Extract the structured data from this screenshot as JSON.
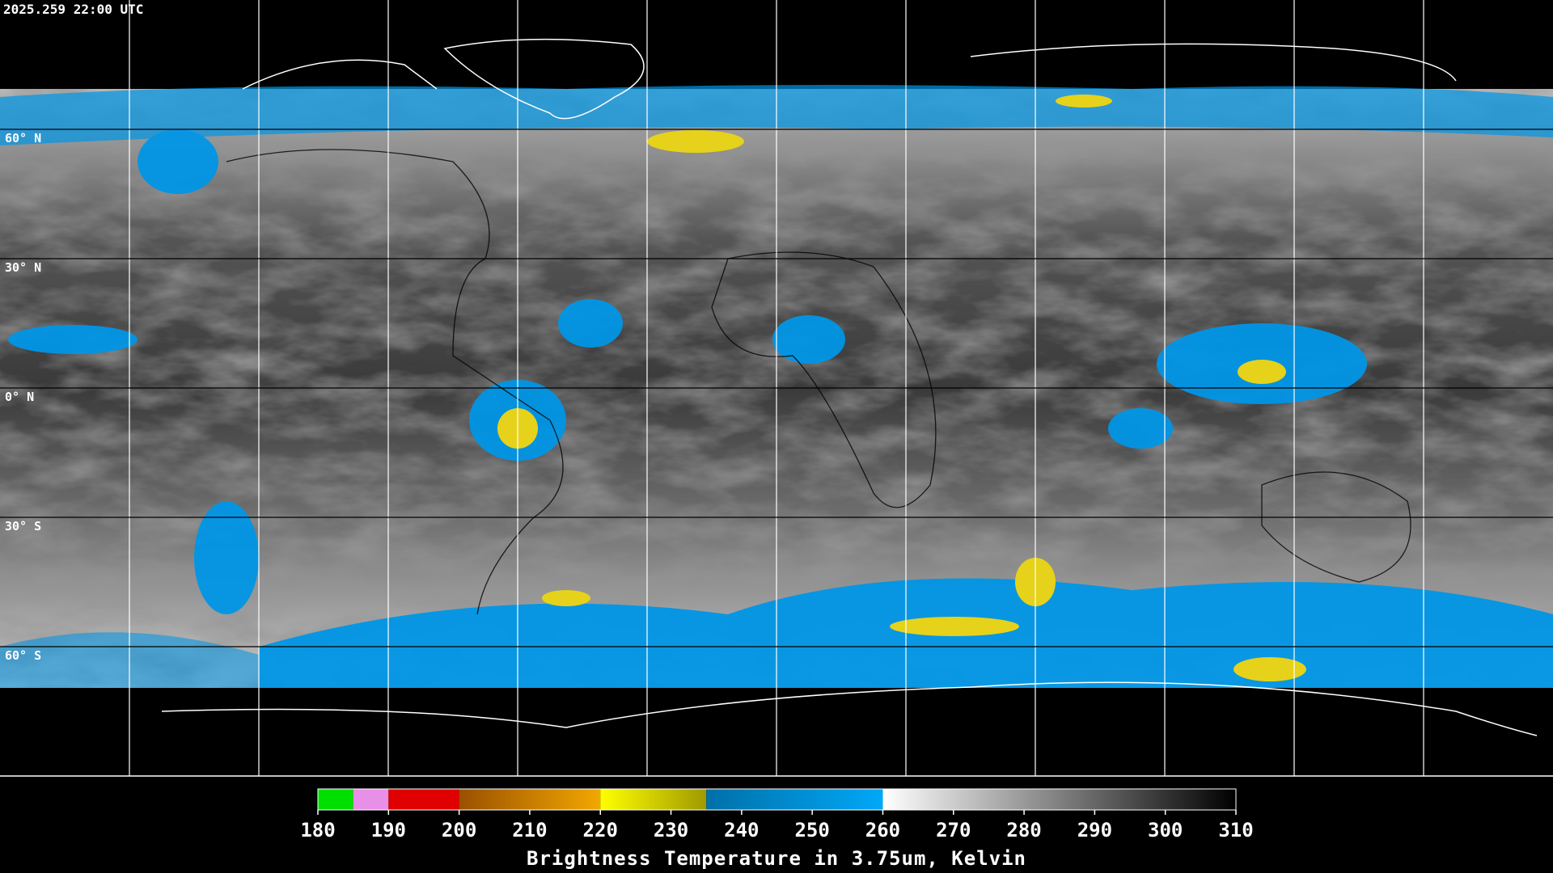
{
  "header": {
    "timestamp": "2025.259 22:00 UTC"
  },
  "map": {
    "latitudes": [
      {
        "value": 60,
        "label": "60° N"
      },
      {
        "value": 30,
        "label": "30° N"
      },
      {
        "value": 0,
        "label": "0° N"
      },
      {
        "value": -30,
        "label": "30° S"
      },
      {
        "value": -60,
        "label": "60° S"
      }
    ]
  },
  "colorbar": {
    "range": [
      180,
      310
    ],
    "ticks": [
      180,
      190,
      200,
      210,
      220,
      230,
      240,
      250,
      260,
      270,
      280,
      290,
      300,
      310
    ],
    "title": "Brightness Temperature in 3.75um, Kelvin",
    "segments": [
      {
        "from": 180,
        "to": 185,
        "colors": [
          "#00e000",
          "#00e000"
        ]
      },
      {
        "from": 185,
        "to": 190,
        "colors": [
          "#e890e8",
          "#e890e8"
        ]
      },
      {
        "from": 190,
        "to": 200,
        "colors": [
          "#e00000",
          "#e00000"
        ]
      },
      {
        "from": 200,
        "to": 220,
        "colors": [
          "#9a5000",
          "#f2a800"
        ]
      },
      {
        "from": 220,
        "to": 235,
        "colors": [
          "#ffff00",
          "#a09a00"
        ]
      },
      {
        "from": 235,
        "to": 260,
        "colors": [
          "#0070a8",
          "#00a8f8"
        ]
      },
      {
        "from": 260,
        "to": 310,
        "colors": [
          "#ffffff",
          "#000000"
        ]
      }
    ]
  }
}
